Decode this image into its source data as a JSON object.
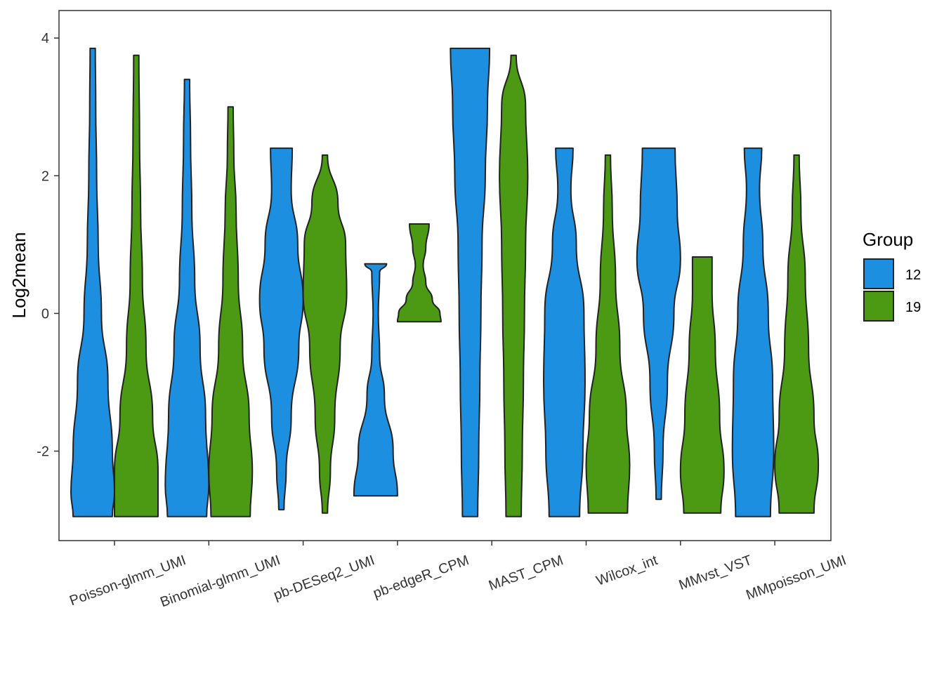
{
  "chart_data": {
    "type": "violin",
    "title": "",
    "xlabel": "",
    "ylabel": "Log2mean",
    "ylim": [
      -3.3,
      4.4
    ],
    "yticks": [
      -2,
      0,
      2,
      4
    ],
    "ytick_labels": [
      "-2",
      "0",
      "2",
      "4"
    ],
    "grid": false,
    "legend": {
      "title": "Group",
      "position": "right"
    },
    "categories": [
      "Poisson-glmm_UMI",
      "Binomial-glmm_UMI",
      "pb-DESeq2_UMI",
      "pb-edgeR_CPM",
      "MAST_CPM",
      "Wilcox_int",
      "MMvst_VST",
      "MMpoisson_UMI"
    ],
    "series": [
      {
        "name": "12",
        "color": "#1c8fe0",
        "violins": [
          {
            "min": -2.95,
            "max": 3.85,
            "profile": [
              [
                -2.95,
                0.9
              ],
              [
                -2.6,
                1.0
              ],
              [
                -2.0,
                0.9
              ],
              [
                -1.0,
                0.7
              ],
              [
                0.0,
                0.4
              ],
              [
                1.0,
                0.25
              ],
              [
                2.0,
                0.18
              ],
              [
                3.0,
                0.14
              ],
              [
                3.85,
                0.12
              ]
            ]
          },
          {
            "min": -2.95,
            "max": 3.4,
            "profile": [
              [
                -2.95,
                0.9
              ],
              [
                -2.5,
                1.0
              ],
              [
                -1.5,
                0.85
              ],
              [
                -0.5,
                0.6
              ],
              [
                0.5,
                0.35
              ],
              [
                1.5,
                0.22
              ],
              [
                2.5,
                0.16
              ],
              [
                3.4,
                0.12
              ]
            ]
          },
          {
            "min": -2.85,
            "max": 2.4,
            "profile": [
              [
                -2.85,
                0.12
              ],
              [
                -2.3,
                0.22
              ],
              [
                -1.5,
                0.45
              ],
              [
                -0.5,
                0.8
              ],
              [
                0.2,
                1.0
              ],
              [
                1.0,
                0.75
              ],
              [
                1.8,
                0.45
              ],
              [
                2.4,
                0.5
              ]
            ]
          },
          {
            "min": -2.65,
            "max": 0.72,
            "profile": [
              [
                -2.65,
                1.0
              ],
              [
                -2.0,
                0.8
              ],
              [
                -1.2,
                0.4
              ],
              [
                -0.6,
                0.18
              ],
              [
                0.0,
                0.12
              ],
              [
                0.6,
                0.18
              ],
              [
                0.72,
                0.5
              ]
            ]
          },
          {
            "min": -2.95,
            "max": 3.85,
            "profile": [
              [
                -2.95,
                0.35
              ],
              [
                -2.0,
                0.4
              ],
              [
                -1.0,
                0.45
              ],
              [
                0.0,
                0.5
              ],
              [
                1.0,
                0.55
              ],
              [
                2.0,
                0.7
              ],
              [
                3.0,
                0.8
              ],
              [
                3.85,
                0.9
              ]
            ]
          },
          {
            "min": -2.95,
            "max": 2.4,
            "profile": [
              [
                -2.95,
                0.7
              ],
              [
                -2.0,
                0.85
              ],
              [
                -1.0,
                0.95
              ],
              [
                0.0,
                0.9
              ],
              [
                1.0,
                0.55
              ],
              [
                1.8,
                0.3
              ],
              [
                2.4,
                0.4
              ]
            ]
          },
          {
            "min": -2.7,
            "max": 2.4,
            "profile": [
              [
                -2.7,
                0.12
              ],
              [
                -2.0,
                0.2
              ],
              [
                -1.0,
                0.4
              ],
              [
                0.0,
                0.7
              ],
              [
                0.8,
                1.0
              ],
              [
                1.5,
                0.85
              ],
              [
                2.4,
                0.75
              ]
            ]
          },
          {
            "min": -2.95,
            "max": 2.4,
            "profile": [
              [
                -2.95,
                0.8
              ],
              [
                -2.0,
                0.95
              ],
              [
                -1.0,
                0.9
              ],
              [
                0.0,
                0.7
              ],
              [
                1.0,
                0.45
              ],
              [
                1.8,
                0.3
              ],
              [
                2.4,
                0.4
              ]
            ]
          }
        ]
      },
      {
        "name": "19",
        "color": "#4c9a13",
        "violins": [
          {
            "min": -2.95,
            "max": 3.75,
            "profile": [
              [
                -2.95,
                1.0
              ],
              [
                -2.3,
                1.0
              ],
              [
                -1.5,
                0.75
              ],
              [
                -0.5,
                0.45
              ],
              [
                0.5,
                0.28
              ],
              [
                1.5,
                0.2
              ],
              [
                2.5,
                0.15
              ],
              [
                3.75,
                0.12
              ]
            ]
          },
          {
            "min": -2.95,
            "max": 3.0,
            "profile": [
              [
                -2.95,
                0.9
              ],
              [
                -2.3,
                1.0
              ],
              [
                -1.5,
                0.85
              ],
              [
                -0.5,
                0.55
              ],
              [
                0.5,
                0.35
              ],
              [
                1.5,
                0.25
              ],
              [
                2.3,
                0.15
              ],
              [
                3.0,
                0.12
              ]
            ]
          },
          {
            "min": -2.9,
            "max": 2.3,
            "profile": [
              [
                -2.9,
                0.12
              ],
              [
                -2.3,
                0.25
              ],
              [
                -1.5,
                0.45
              ],
              [
                -0.5,
                0.7
              ],
              [
                0.3,
                1.0
              ],
              [
                1.0,
                0.95
              ],
              [
                1.6,
                0.6
              ],
              [
                2.3,
                0.12
              ]
            ]
          },
          {
            "min": -0.12,
            "max": 1.3,
            "profile": [
              [
                -0.12,
                1.0
              ],
              [
                0.0,
                0.95
              ],
              [
                0.2,
                0.6
              ],
              [
                0.45,
                0.3
              ],
              [
                0.7,
                0.18
              ],
              [
                0.95,
                0.3
              ],
              [
                1.3,
                0.45
              ]
            ]
          },
          {
            "min": -2.95,
            "max": 3.75,
            "profile": [
              [
                -2.95,
                0.35
              ],
              [
                -2.0,
                0.4
              ],
              [
                -1.0,
                0.45
              ],
              [
                0.0,
                0.5
              ],
              [
                1.0,
                0.55
              ],
              [
                2.0,
                0.65
              ],
              [
                3.0,
                0.55
              ],
              [
                3.75,
                0.12
              ]
            ]
          },
          {
            "min": -2.9,
            "max": 2.3,
            "profile": [
              [
                -2.9,
                0.9
              ],
              [
                -2.2,
                1.0
              ],
              [
                -1.5,
                0.85
              ],
              [
                -0.5,
                0.55
              ],
              [
                0.5,
                0.35
              ],
              [
                1.5,
                0.2
              ],
              [
                2.3,
                0.12
              ]
            ]
          },
          {
            "min": -2.9,
            "max": 0.82,
            "profile": [
              [
                -2.9,
                0.85
              ],
              [
                -2.3,
                1.0
              ],
              [
                -1.5,
                0.8
              ],
              [
                -0.5,
                0.6
              ],
              [
                0.3,
                0.45
              ],
              [
                0.82,
                0.45
              ]
            ]
          },
          {
            "min": -2.9,
            "max": 2.3,
            "profile": [
              [
                -2.9,
                0.8
              ],
              [
                -2.2,
                1.0
              ],
              [
                -1.5,
                0.8
              ],
              [
                -0.5,
                0.55
              ],
              [
                0.5,
                0.4
              ],
              [
                1.5,
                0.2
              ],
              [
                2.3,
                0.12
              ]
            ]
          }
        ]
      }
    ]
  }
}
